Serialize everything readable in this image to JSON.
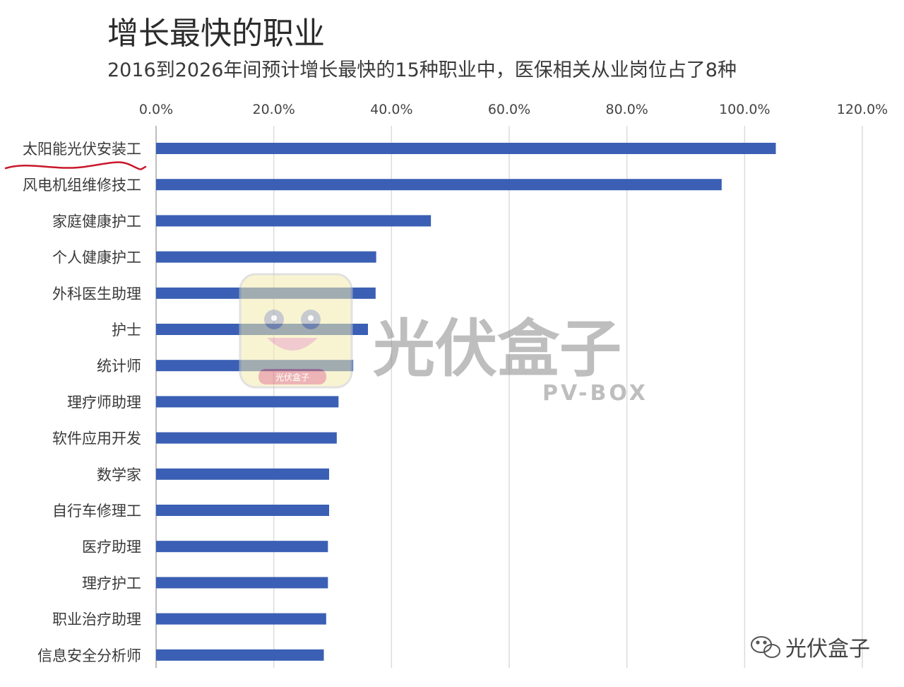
{
  "chart_data": {
    "type": "bar",
    "orientation": "horizontal",
    "title": "增长最快的职业",
    "subtitle": "2016到2026年间预计增长最快的15种职业中，医保相关从业岗位占了8种",
    "categories": [
      "太阳能光伏安装工",
      "风电机组维修技工",
      "家庭健康护工",
      "个人健康护工",
      "外科医生助理",
      "护士",
      "统计师",
      "理疗师助理",
      "软件应用开发",
      "数学家",
      "自行车修理工",
      "医疗助理",
      "理疗护工",
      "职业治疗助理",
      "信息安全分析师"
    ],
    "values": [
      105.3,
      96.1,
      46.7,
      37.4,
      37.3,
      36.0,
      33.5,
      31.0,
      30.7,
      29.4,
      29.4,
      29.2,
      29.2,
      28.9,
      28.5
    ],
    "xlim": [
      0,
      120
    ],
    "x_ticks": [
      "0.0%",
      "20.0%",
      "40.0%",
      "60.0%",
      "80.0%",
      "100.0%",
      "120.0%"
    ],
    "x_tick_values": [
      0,
      20,
      40,
      60,
      80,
      100,
      120
    ],
    "x_axis_position": "top",
    "grid": true,
    "bar_color": "#3a5fb4",
    "grid_color": "#dcdcdc",
    "highlight_category": "太阳能光伏安装工",
    "highlight_color": "#c8182a"
  },
  "watermark": {
    "name": "光伏盒子",
    "sub": "PV-BOX",
    "badge": "光伏盒子",
    "icon": "mascot-logo-icon"
  },
  "wechat": {
    "icon": "wechat-icon",
    "label": "光伏盒子"
  }
}
